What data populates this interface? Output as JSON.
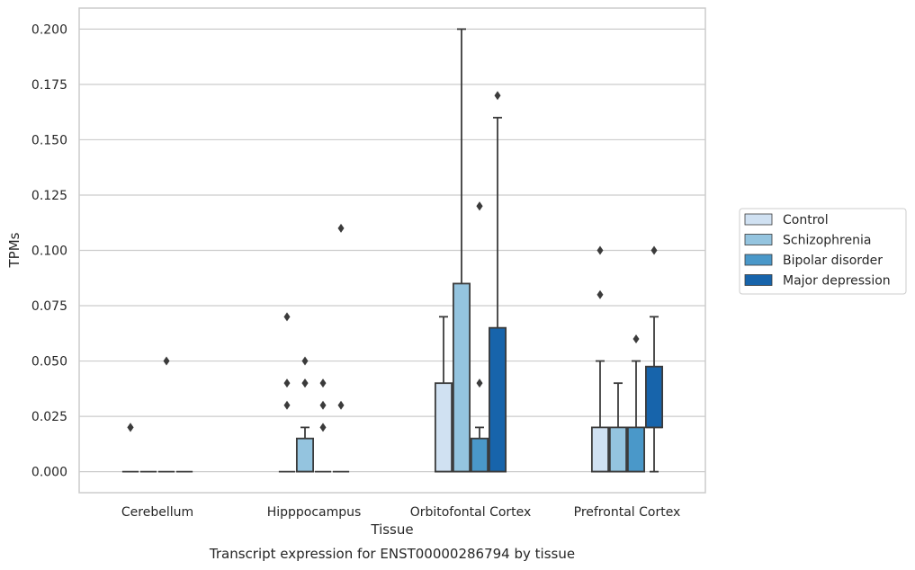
{
  "chart_data": {
    "type": "box",
    "title": "",
    "caption": "Transcript expression for ENST00000286794 by tissue",
    "xlabel": "Tissue",
    "ylabel": "TPMs",
    "ylim": [
      -0.0095,
      0.2095
    ],
    "yticks": [
      "0.000",
      "0.025",
      "0.050",
      "0.075",
      "0.100",
      "0.125",
      "0.150",
      "0.175",
      "0.200"
    ],
    "categories": [
      "Cerebellum",
      "Hipppocampus",
      "Orbitofontal Cortex",
      "Prefrontal Cortex"
    ],
    "grid": "horizontal",
    "legend_position": "right",
    "series": [
      {
        "name": "Control",
        "color": "#d0e1f2",
        "boxes": [
          {
            "q1": 0.0,
            "median": 0.0,
            "q3": 0.0,
            "whislo": 0.0,
            "whishi": 0.0,
            "fliers": [
              0.02,
              0.02
            ]
          },
          {
            "q1": 0.0,
            "median": 0.0,
            "q3": 0.0,
            "whislo": 0.0,
            "whishi": 0.0,
            "fliers": [
              0.03,
              0.04,
              0.07
            ]
          },
          {
            "q1": 0.0,
            "median": 0.0,
            "q3": 0.04,
            "whislo": 0.0,
            "whishi": 0.07,
            "fliers": []
          },
          {
            "q1": 0.0,
            "median": 0.0,
            "q3": 0.02,
            "whislo": 0.0,
            "whishi": 0.05,
            "fliers": [
              0.08,
              0.1
            ]
          }
        ]
      },
      {
        "name": "Schizophrenia",
        "color": "#94c4df",
        "boxes": [
          {
            "q1": 0.0,
            "median": 0.0,
            "q3": 0.0,
            "whislo": 0.0,
            "whishi": 0.0,
            "fliers": []
          },
          {
            "q1": 0.0,
            "median": 0.0,
            "q3": 0.015,
            "whislo": 0.0,
            "whishi": 0.02,
            "fliers": [
              0.04,
              0.04,
              0.05
            ]
          },
          {
            "q1": 0.0,
            "median": 0.0,
            "q3": 0.085,
            "whislo": 0.0,
            "whishi": 0.2,
            "fliers": []
          },
          {
            "q1": 0.0,
            "median": 0.0,
            "q3": 0.02,
            "whislo": 0.0,
            "whishi": 0.04,
            "fliers": []
          }
        ]
      },
      {
        "name": "Bipolar disorder",
        "color": "#4a98c9",
        "boxes": [
          {
            "q1": 0.0,
            "median": 0.0,
            "q3": 0.0,
            "whislo": 0.0,
            "whishi": 0.0,
            "fliers": [
              0.05
            ]
          },
          {
            "q1": 0.0,
            "median": 0.0,
            "q3": 0.0,
            "whislo": 0.0,
            "whishi": 0.0,
            "fliers": [
              0.02,
              0.03,
              0.04
            ]
          },
          {
            "q1": 0.0,
            "median": 0.0,
            "q3": 0.015,
            "whislo": 0.0,
            "whishi": 0.02,
            "fliers": [
              0.04,
              0.12,
              0.12
            ]
          },
          {
            "q1": 0.0,
            "median": 0.0,
            "q3": 0.02,
            "whislo": 0.0,
            "whishi": 0.05,
            "fliers": [
              0.06
            ]
          }
        ]
      },
      {
        "name": "Major depression",
        "color": "#1764ab",
        "boxes": [
          {
            "q1": 0.0,
            "median": 0.0,
            "q3": 0.0,
            "whislo": 0.0,
            "whishi": 0.0,
            "fliers": []
          },
          {
            "q1": 0.0,
            "median": 0.0,
            "q3": 0.0,
            "whislo": 0.0,
            "whishi": 0.0,
            "fliers": [
              0.03,
              0.11
            ]
          },
          {
            "q1": 0.0,
            "median": 0.0,
            "q3": 0.065,
            "whislo": 0.0,
            "whishi": 0.16,
            "fliers": [
              0.17
            ]
          },
          {
            "q1": 0.02,
            "median": 0.02,
            "q3": 0.0475,
            "whislo": 0.0,
            "whishi": 0.07,
            "fliers": [
              0.1
            ]
          }
        ]
      }
    ]
  }
}
